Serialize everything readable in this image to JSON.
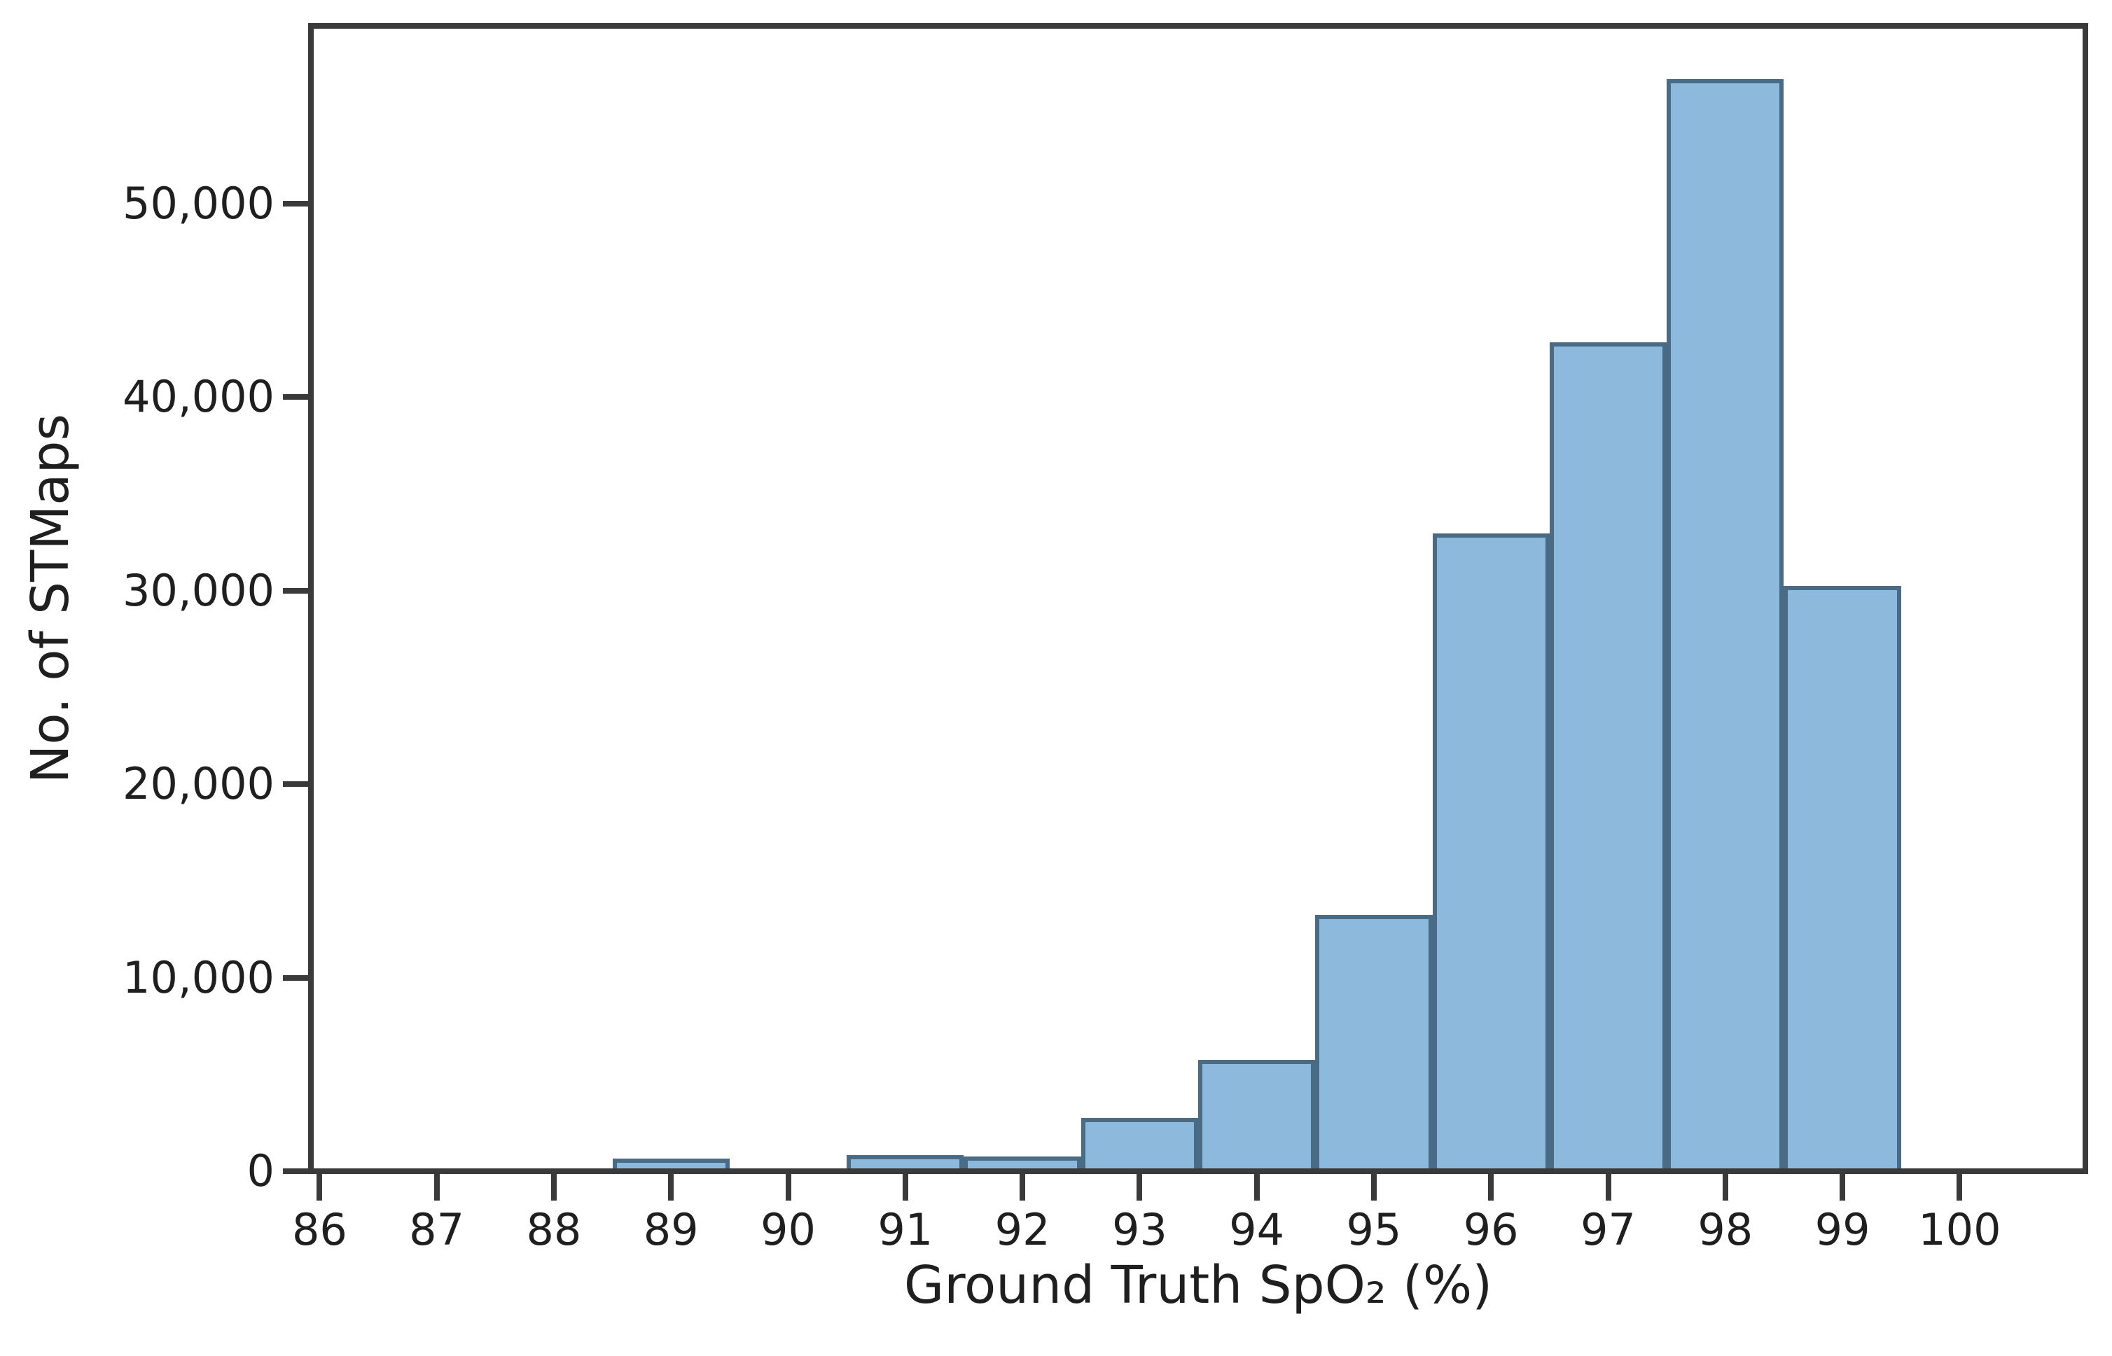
{
  "figure": {
    "background": "#ffffff"
  },
  "colors": {
    "bar_fill": "#8dbadc",
    "bar_edge": "#4a6b85",
    "axis": "#3a3a3a",
    "text": "#1f1f1f"
  },
  "chart_data": {
    "type": "bar",
    "subtype": "histogram",
    "title": "",
    "xlabel": "Ground Truth SpO₂ (%)",
    "ylabel": "No. of STMaps",
    "bin_width": 1,
    "categories": [
      86,
      87,
      88,
      89,
      90,
      91,
      92,
      93,
      94,
      95,
      96,
      97,
      98,
      99,
      100
    ],
    "values": [
      0,
      0,
      0,
      500,
      0,
      700,
      600,
      2600,
      5600,
      13100,
      32800,
      42700,
      56300,
      30100,
      0
    ],
    "xticks": [
      86,
      87,
      88,
      89,
      90,
      91,
      92,
      93,
      94,
      95,
      96,
      97,
      98,
      99,
      100
    ],
    "yticks": [
      0,
      10000,
      20000,
      30000,
      40000,
      50000
    ],
    "ytick_labels": [
      "0",
      "10,000",
      "20,000",
      "30,000",
      "40,000",
      "50,000"
    ],
    "xlim": [
      85.95,
      101.05
    ],
    "ylim": [
      0,
      58900
    ],
    "grid": false,
    "legend": false
  }
}
